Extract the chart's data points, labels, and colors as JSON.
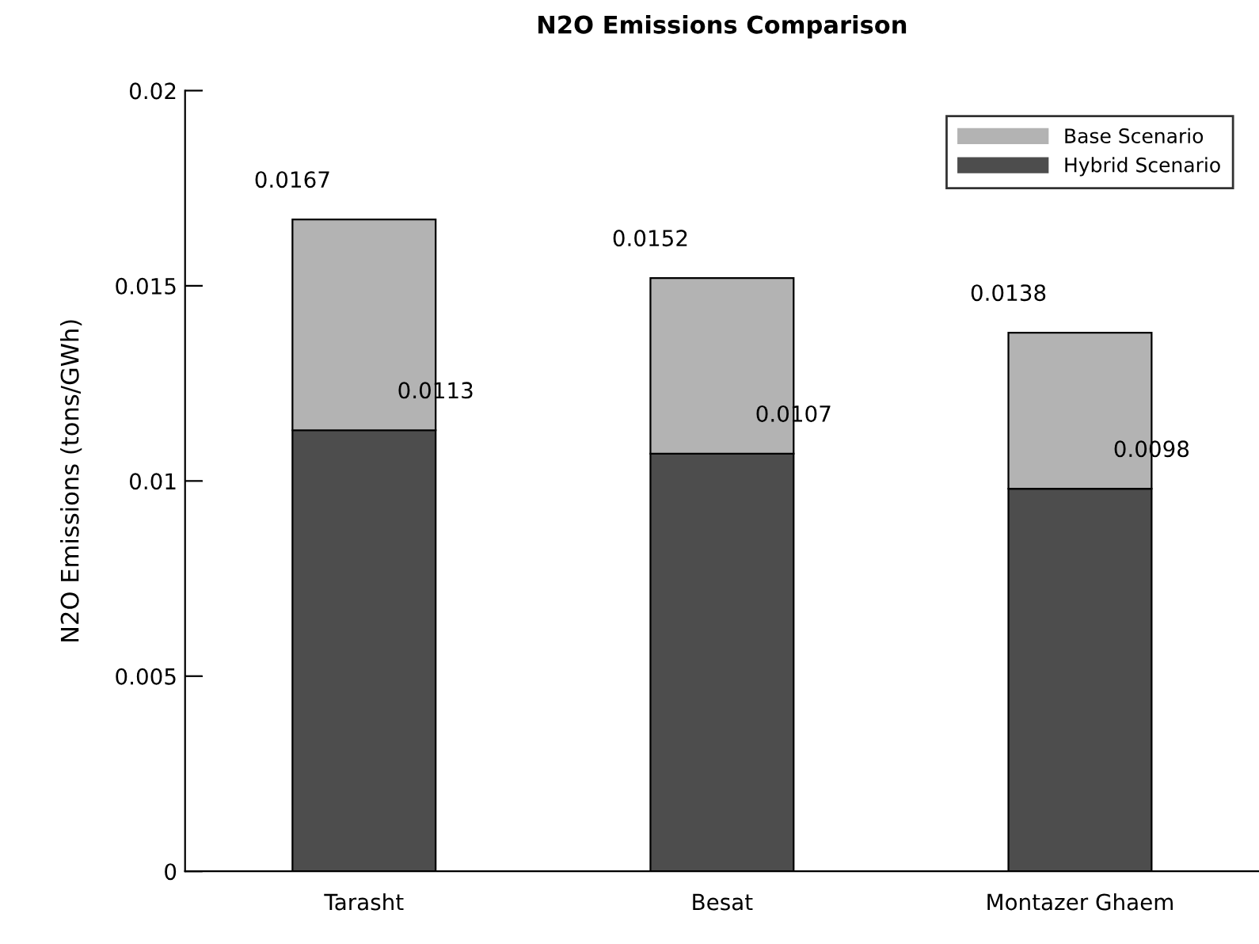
{
  "chart_data": {
    "type": "bar",
    "title": "N2O Emissions Comparison",
    "ylabel": "N2O Emissions (tons/GWh)",
    "categories": [
      "Tarasht",
      "Besat",
      "Montazer Ghaem"
    ],
    "stacked": true,
    "totals": [
      "0.0167",
      "0.0152",
      "0.0138"
    ],
    "series": [
      {
        "name": "Hybrid Scenario",
        "color": "#4d4d4d",
        "values": [
          0.0113,
          0.0107,
          0.0098
        ],
        "value_labels": [
          "0.0113",
          "0.0107",
          "0.0098"
        ]
      },
      {
        "name": "Base Scenario",
        "color": "#b3b3b3",
        "values": [
          0.0054,
          0.0045,
          0.004
        ]
      }
    ],
    "ylim": [
      0,
      0.02
    ],
    "yticks": [
      0,
      0.005,
      0.01,
      0.015,
      0.02
    ],
    "grid": false,
    "legend": "top right"
  }
}
